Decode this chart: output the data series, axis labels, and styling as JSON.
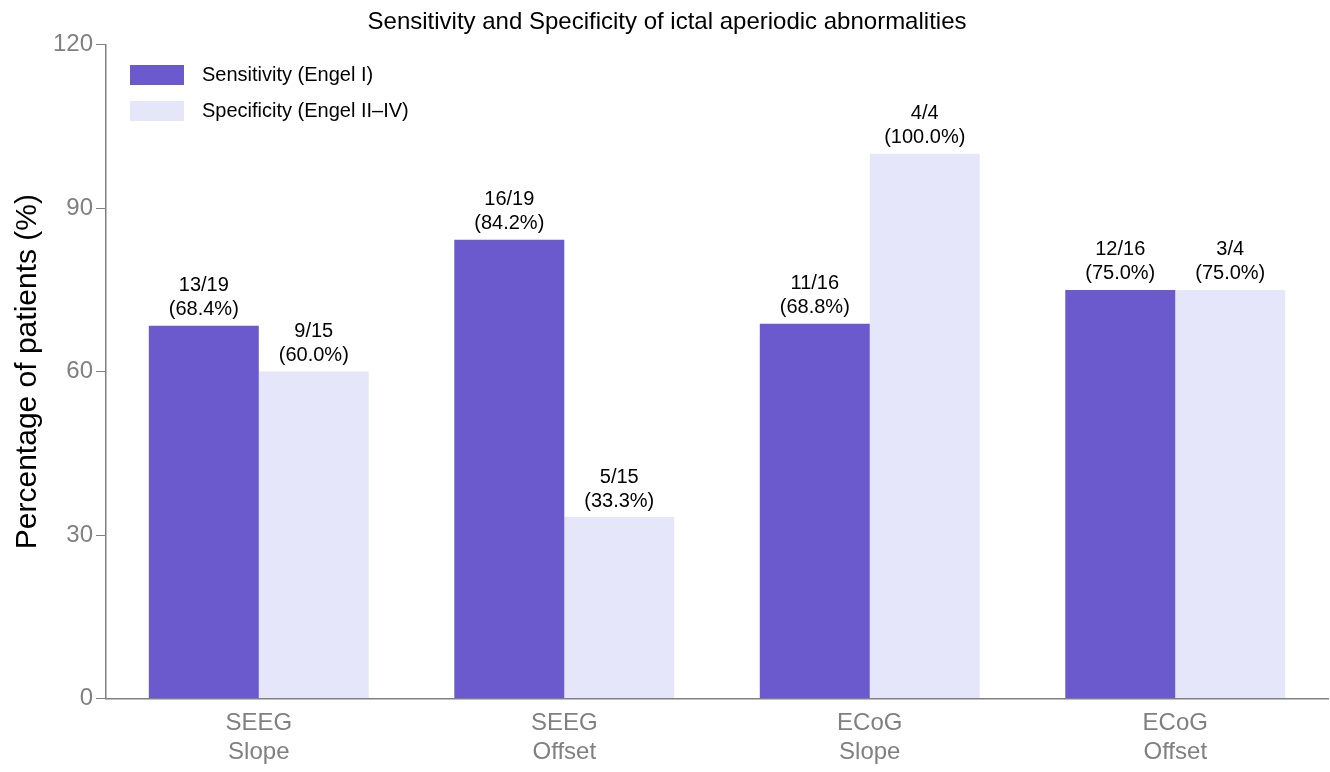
{
  "chart_data": {
    "type": "bar",
    "title": "Sensitivity and Specificity of ictal aperiodic abnormalities",
    "ylabel": "Percentage of patients (%)",
    "categories": [
      "SEEG\nSlope",
      "SEEG\nOffset",
      "ECoG\nSlope",
      "ECoG\nOffset"
    ],
    "series": [
      {
        "name": "Sensitivity (Engel I)",
        "color": "#6a5acd",
        "values": [
          68.4,
          84.2,
          68.8,
          75.0
        ],
        "value_labels": [
          "13/19\n(68.4%)",
          "16/19\n(84.2%)",
          "11/16\n(68.8%)",
          "12/16\n(75.0%)"
        ]
      },
      {
        "name": "Specificity (Engel II–IV)",
        "color": "#e6e6fa",
        "values": [
          60.0,
          33.3,
          100.0,
          75.0
        ],
        "value_labels": [
          "9/15\n(60.0%)",
          "5/15\n(33.3%)",
          "4/4\n(100.0%)",
          "3/4\n(75.0%)"
        ]
      }
    ],
    "ylim": [
      0,
      120
    ],
    "yticks": [
      0,
      30,
      60,
      90,
      120
    ],
    "grid": false,
    "legend": "top left"
  }
}
